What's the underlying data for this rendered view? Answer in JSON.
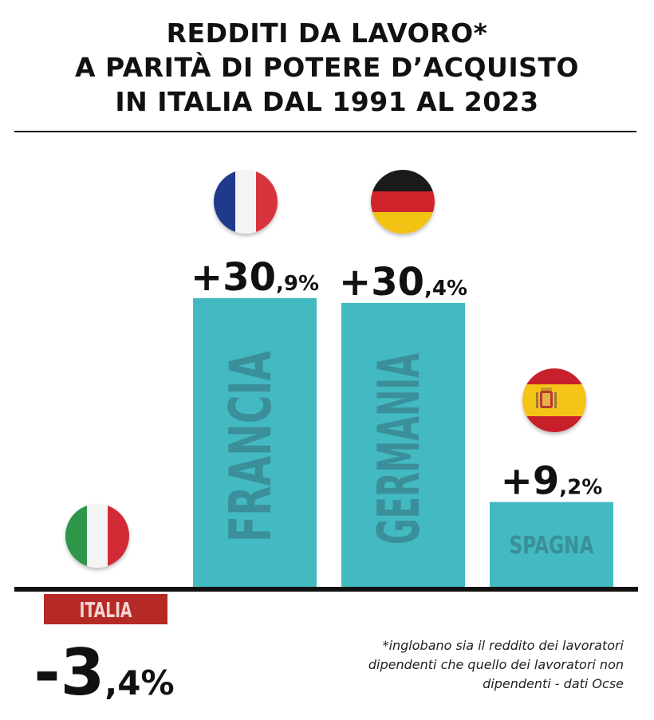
{
  "header": {
    "title_lines": [
      "REDDITI DA LAVORO*",
      "A PARITÀ DI POTERE D’ACQUISTO",
      "IN ITALIA DAL 1991 AL 2023"
    ]
  },
  "footnote": {
    "lines": [
      "*inglobano sia il reddito dei lavoratori",
      "dipendenti che quello dei lavoratori non",
      "dipendenti - dati Ocse"
    ]
  },
  "colors": {
    "bar": "#43b9c1",
    "bar_label": "#3a8f9a",
    "negative_label_bg": "#b62a25",
    "negative_label_text": "#f2d6d3",
    "axis": "#111111",
    "text": "#111111"
  },
  "chart_data": {
    "type": "bar",
    "categories": [
      "ITALIA",
      "FRANCIA",
      "GERMANIA",
      "SPAGNA"
    ],
    "values": [
      -3.4,
      30.9,
      30.4,
      9.2
    ],
    "value_labels": [
      {
        "int": "-3",
        "dec": ",4%"
      },
      {
        "int": "+30",
        "dec": ",9%"
      },
      {
        "int": "+30",
        "dec": ",4%"
      },
      {
        "int": "+9",
        "dec": ",2%"
      }
    ],
    "flags": [
      "italy-flag-icon",
      "france-flag-icon",
      "germany-flag-icon",
      "spain-flag-icon"
    ],
    "ylim": [
      -3.4,
      30.9
    ],
    "grid": false,
    "legend": "none"
  }
}
